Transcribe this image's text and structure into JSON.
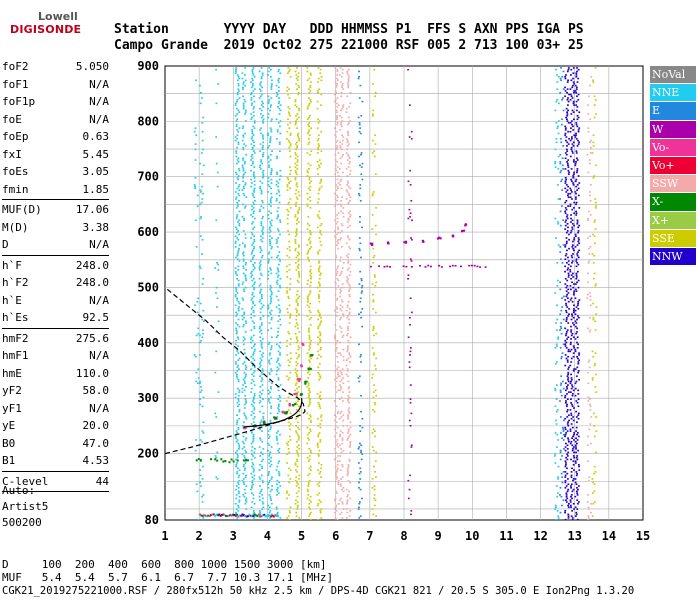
{
  "logo": {
    "line1": "Lowell",
    "line2": "DIGISONDE"
  },
  "header": {
    "labels": "Station       YYYY DAY   DDD HHMMSS P1  FFS S AXN PPS IGA PS",
    "values": "Campo Grande  2019 Oct02 275 221000 RSF 005 2 713 100 03+ 25"
  },
  "params": [
    {
      "name": "foF2",
      "value": "5.050"
    },
    {
      "name": "foF1",
      "value": "N/A"
    },
    {
      "name": "foF1p",
      "value": "N/A"
    },
    {
      "name": "foE",
      "value": "N/A"
    },
    {
      "name": "foEp",
      "value": "0.63"
    },
    {
      "name": "fxI",
      "value": "5.45"
    },
    {
      "name": "foEs",
      "value": "3.05"
    },
    {
      "name": "fmin",
      "value": "1.85"
    },
    {
      "sep": true
    },
    {
      "name": "MUF(D)",
      "value": "17.06"
    },
    {
      "name": "M(D)",
      "value": "3.38"
    },
    {
      "name": "D",
      "value": "N/A"
    },
    {
      "sep": true
    },
    {
      "name": "h`F",
      "value": "248.0"
    },
    {
      "name": "h`F2",
      "value": "248.0"
    },
    {
      "name": "h`E",
      "value": "N/A"
    },
    {
      "name": "h`Es",
      "value": "92.5"
    },
    {
      "sep": true
    },
    {
      "name": "hmF2",
      "value": "275.6"
    },
    {
      "name": "hmF1",
      "value": "N/A"
    },
    {
      "name": "hmE",
      "value": "110.0"
    },
    {
      "name": "yF2",
      "value": "58.0"
    },
    {
      "name": "yF1",
      "value": "N/A"
    },
    {
      "name": "yE",
      "value": "20.0"
    },
    {
      "name": "B0",
      "value": "47.0"
    },
    {
      "name": "B1",
      "value": "4.53"
    },
    {
      "sep": true
    },
    {
      "name": "C-level",
      "value": "44"
    },
    {
      "sep": true
    }
  ],
  "auto": {
    "line1": "Auto:",
    "line2": "Artist5",
    "line3": "500200"
  },
  "legend": [
    {
      "label": "NoVal",
      "color": "#888888"
    },
    {
      "label": "NNE",
      "color": "#22ccee"
    },
    {
      "label": "E",
      "color": "#2288dd"
    },
    {
      "label": "W",
      "color": "#aa00aa"
    },
    {
      "label": "Vo-",
      "color": "#ee3399"
    },
    {
      "label": "Vo+",
      "color": "#ee0033"
    },
    {
      "label": "SSW",
      "color": "#f4aaaa"
    },
    {
      "label": "X-",
      "color": "#008800"
    },
    {
      "label": "X+",
      "color": "#99cc44"
    },
    {
      "label": "SSE",
      "color": "#cccc00"
    },
    {
      "label": "NNW",
      "color": "#2200cc"
    }
  ],
  "footer": {
    "d_row": "D     100  200  400  600  800 1000 1500 3000 [km]",
    "muf_row": "MUF   5.4  5.4  5.7  6.1  6.7  7.7 10.3 17.1 [MHz]",
    "source": "CGK21_2019275221000.RSF / 280fx512h 50 kHz 2.5 km / DPS-4D CGK21 821 / 20.5 S 305.0 E Ion2Png 1.3.20"
  },
  "chart_data": {
    "type": "scatter",
    "title": "",
    "xlabel": "",
    "ylabel": "",
    "xlim": [
      1,
      15
    ],
    "ylim": [
      80,
      900
    ],
    "x_ticks": [
      "1",
      "2",
      "3",
      "4",
      "5",
      "6",
      "7",
      "8",
      "9",
      "10",
      "11",
      "12",
      "13",
      "14",
      "15"
    ],
    "y_ticks": [
      "80",
      "200",
      "300",
      "400",
      "500",
      "600",
      "700",
      "800",
      "900"
    ],
    "grid": true,
    "legend_position": "right",
    "profile_dashed": [
      [
        1.0,
        200
      ],
      [
        1.8,
        212
      ],
      [
        2.5,
        224
      ],
      [
        3.2,
        236
      ],
      [
        3.8,
        247
      ],
      [
        4.3,
        257
      ],
      [
        4.7,
        264
      ],
      [
        5.0,
        270
      ],
      [
        5.1,
        276
      ],
      [
        5.05,
        290
      ],
      [
        4.9,
        300
      ],
      [
        4.6,
        310
      ],
      [
        4.3,
        322
      ],
      [
        4.0,
        338
      ],
      [
        3.6,
        360
      ],
      [
        3.2,
        385
      ],
      [
        2.7,
        410
      ],
      [
        2.2,
        440
      ],
      [
        1.7,
        465
      ],
      [
        1.3,
        485
      ],
      [
        1.0,
        500
      ]
    ],
    "trace_oF2": [
      [
        3.3,
        248
      ],
      [
        3.6,
        252
      ],
      [
        3.9,
        258
      ],
      [
        4.2,
        266
      ],
      [
        4.45,
        276
      ],
      [
        4.65,
        290
      ],
      [
        4.8,
        310
      ],
      [
        4.9,
        335
      ],
      [
        4.95,
        360
      ],
      [
        5.0,
        400
      ]
    ],
    "trace_xF2": [
      [
        3.6,
        252
      ],
      [
        3.9,
        258
      ],
      [
        4.2,
        266
      ],
      [
        4.5,
        276
      ],
      [
        4.75,
        290
      ],
      [
        4.95,
        308
      ],
      [
        5.1,
        330
      ],
      [
        5.2,
        355
      ],
      [
        5.25,
        380
      ]
    ],
    "trace_sporadic_W": [
      [
        7.0,
        580
      ],
      [
        7.5,
        582
      ],
      [
        8.0,
        584
      ],
      [
        8.5,
        586
      ],
      [
        9.0,
        590
      ],
      [
        9.4,
        595
      ],
      [
        9.7,
        605
      ],
      [
        9.8,
        615
      ]
    ]
  }
}
